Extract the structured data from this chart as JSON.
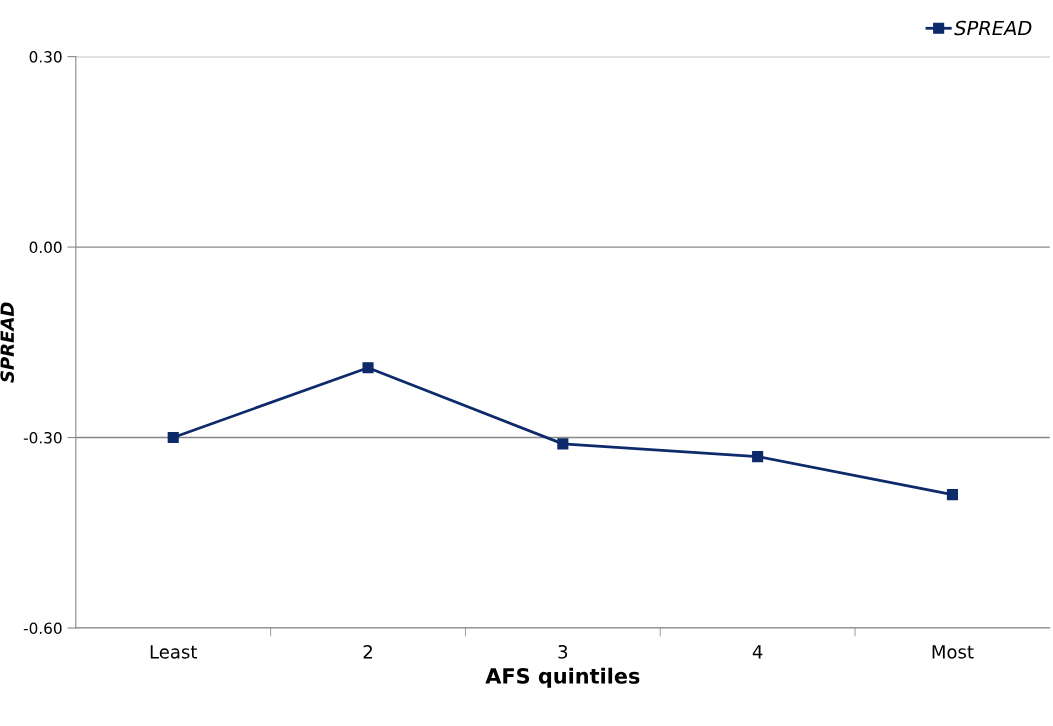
{
  "chart_data": {
    "type": "line",
    "xlabel": "AFS quintiles",
    "ylabel": "SPREAD",
    "categories": [
      "Least",
      "2",
      "3",
      "4",
      "Most"
    ],
    "series": [
      {
        "name": "SPREAD",
        "color": "#0d2a6b",
        "values": [
          -0.3,
          -0.19,
          -0.31,
          -0.33,
          -0.39
        ]
      }
    ],
    "ylim": [
      -0.6,
      0.3
    ],
    "yticks": [
      {
        "value": -0.6,
        "label": "-0.60"
      },
      {
        "value": -0.3,
        "label": "-0.30"
      },
      {
        "value": 0,
        "label": "0.00"
      },
      {
        "value": 0.3,
        "label": "0.30"
      }
    ],
    "grid": "y",
    "legend": "top right",
    "marker": "square",
    "line_style": "solid"
  }
}
